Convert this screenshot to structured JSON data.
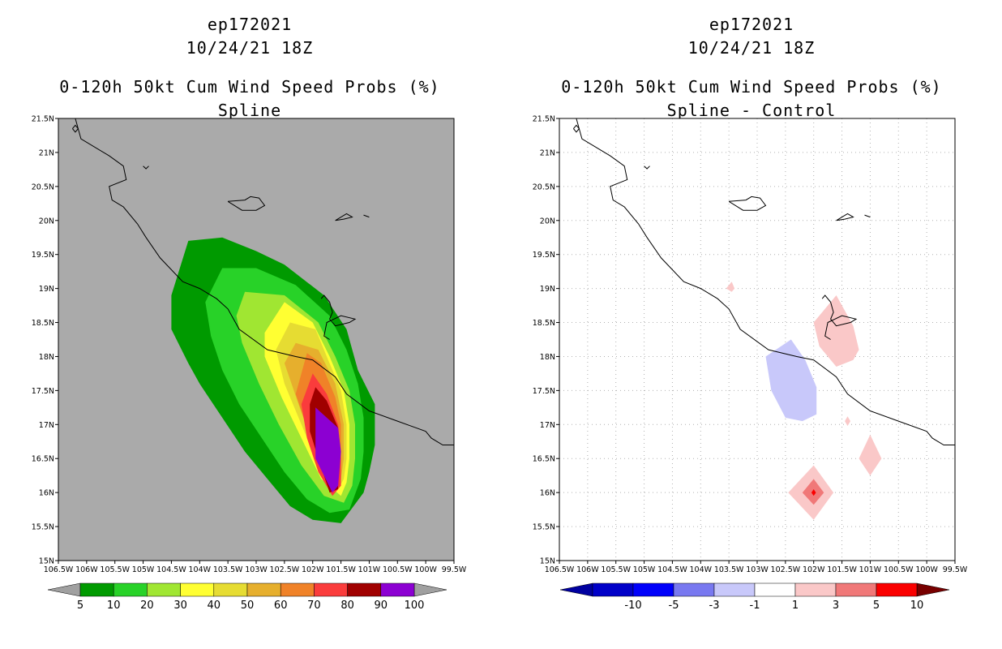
{
  "left_panel": {
    "storm_id": "ep172021",
    "datetime": "10/24/21 18Z",
    "product": "0-120h 50kt Cum Wind Speed Probs (%)",
    "subtitle": "Spline",
    "background_color": "#aaaaaa",
    "colorbar": {
      "labels": [
        "5",
        "10",
        "20",
        "30",
        "40",
        "50",
        "60",
        "70",
        "80",
        "90",
        "100"
      ],
      "colors": [
        "#009a00",
        "#28d228",
        "#a0e632",
        "#ffff32",
        "#e6dc32",
        "#e6af2d",
        "#f08228",
        "#fa3c3c",
        "#a00000",
        "#8c00d2"
      ],
      "end_arrow_color": "#a0a0a0"
    }
  },
  "right_panel": {
    "storm_id": "ep172021",
    "datetime": "10/24/21 18Z",
    "product": "0-120h 50kt Cum Wind Speed Probs (%)",
    "subtitle": "Spline - Control",
    "background_color": "#ffffff",
    "colorbar": {
      "labels": [
        "-10",
        "-5",
        "-3",
        "-1",
        "1",
        "3",
        "5",
        "10"
      ],
      "colors": [
        "#0000c8",
        "#0000fa",
        "#7878f0",
        "#c8c8fa",
        "#ffffff",
        "#fac8c8",
        "#f07878",
        "#fa0000"
      ],
      "low_arrow_color": "#0000a0",
      "high_arrow_color": "#780000"
    }
  },
  "axes": {
    "x_ticks": [
      "106.5W",
      "106W",
      "105.5W",
      "105W",
      "104.5W",
      "104W",
      "103.5W",
      "103W",
      "102.5W",
      "102W",
      "101.5W",
      "101W",
      "100.5W",
      "100W",
      "99.5W"
    ],
    "y_ticks": [
      "15N",
      "15.5N",
      "16N",
      "16.5N",
      "17N",
      "17.5N",
      "18N",
      "18.5N",
      "19N",
      "19.5N",
      "20N",
      "20.5N",
      "21N",
      "21.5N"
    ],
    "lon_range": [
      -106.5,
      -99.5
    ],
    "lat_range": [
      15,
      21.5
    ]
  },
  "map_data": {
    "coastline": [
      [
        -106.2,
        21.5
      ],
      [
        -106.1,
        21.2
      ],
      [
        -105.6,
        20.95
      ],
      [
        -105.35,
        20.8
      ],
      [
        -105.3,
        20.6
      ],
      [
        -105.6,
        20.5
      ],
      [
        -105.55,
        20.3
      ],
      [
        -105.35,
        20.2
      ],
      [
        -105.1,
        19.95
      ],
      [
        -104.95,
        19.75
      ],
      [
        -104.7,
        19.45
      ],
      [
        -104.3,
        19.1
      ],
      [
        -104.0,
        19.0
      ],
      [
        -103.7,
        18.85
      ],
      [
        -103.5,
        18.7
      ],
      [
        -103.3,
        18.4
      ],
      [
        -102.8,
        18.1
      ],
      [
        -102.3,
        18.0
      ],
      [
        -102.0,
        17.95
      ],
      [
        -101.6,
        17.7
      ],
      [
        -101.4,
        17.45
      ],
      [
        -101.0,
        17.2
      ],
      [
        -100.5,
        17.05
      ],
      [
        -100.0,
        16.9
      ],
      [
        -99.9,
        16.8
      ],
      [
        -99.8,
        16.75
      ],
      [
        -99.7,
        16.7
      ],
      [
        -99.5,
        16.7
      ]
    ],
    "islands": [
      [
        [
          -106.25,
          21.35
        ],
        [
          -106.2,
          21.3
        ],
        [
          -106.15,
          21.35
        ],
        [
          -106.2,
          21.4
        ],
        [
          -106.25,
          21.35
        ]
      ],
      [
        [
          -105.0,
          20.8
        ],
        [
          -104.95,
          20.76
        ],
        [
          -104.9,
          20.8
        ]
      ],
      [
        [
          -103.5,
          20.28
        ],
        [
          -103.2,
          20.3
        ],
        [
          -103.1,
          20.35
        ],
        [
          -102.95,
          20.33
        ],
        [
          -102.85,
          20.22
        ],
        [
          -103.0,
          20.15
        ],
        [
          -103.25,
          20.15
        ],
        [
          -103.5,
          20.28
        ]
      ],
      [
        [
          -101.6,
          20.0
        ],
        [
          -101.4,
          20.1
        ],
        [
          -101.3,
          20.05
        ],
        [
          -101.45,
          20.02
        ],
        [
          -101.6,
          20.0
        ]
      ],
      [
        [
          -101.1,
          20.08
        ],
        [
          -101.0,
          20.05
        ]
      ]
    ],
    "lake": [
      [
        -101.85,
        18.85
      ],
      [
        -101.8,
        18.9
      ],
      [
        -101.7,
        18.8
      ],
      [
        -101.65,
        18.65
      ],
      [
        -101.7,
        18.55
      ],
      [
        -101.6,
        18.45
      ],
      [
        -101.35,
        18.5
      ],
      [
        -101.25,
        18.55
      ],
      [
        -101.5,
        18.6
      ],
      [
        -101.75,
        18.5
      ],
      [
        -101.8,
        18.3
      ],
      [
        -101.7,
        18.25
      ]
    ],
    "left_contours": [
      {
        "level": "5",
        "color": "#009a00",
        "points": [
          [
            -104.2,
            19.7
          ],
          [
            -103.6,
            19.75
          ],
          [
            -103.0,
            19.55
          ],
          [
            -102.5,
            19.35
          ],
          [
            -101.8,
            18.9
          ],
          [
            -101.4,
            18.4
          ],
          [
            -101.2,
            17.8
          ],
          [
            -100.9,
            17.3
          ],
          [
            -100.9,
            16.7
          ],
          [
            -101.0,
            16.3
          ],
          [
            -101.1,
            16.0
          ],
          [
            -101.5,
            15.55
          ],
          [
            -102.0,
            15.6
          ],
          [
            -102.4,
            15.8
          ],
          [
            -102.8,
            16.2
          ],
          [
            -103.2,
            16.6
          ],
          [
            -103.6,
            17.1
          ],
          [
            -104.0,
            17.6
          ],
          [
            -104.2,
            17.9
          ],
          [
            -104.5,
            18.4
          ],
          [
            -104.5,
            18.9
          ],
          [
            -104.2,
            19.7
          ]
        ]
      },
      {
        "level": "10",
        "color": "#28d228",
        "points": [
          [
            -103.6,
            19.3
          ],
          [
            -103.0,
            19.3
          ],
          [
            -102.3,
            19.05
          ],
          [
            -101.7,
            18.6
          ],
          [
            -101.4,
            18.1
          ],
          [
            -101.2,
            17.6
          ],
          [
            -101.1,
            17.1
          ],
          [
            -101.1,
            16.6
          ],
          [
            -101.15,
            16.2
          ],
          [
            -101.35,
            15.75
          ],
          [
            -101.7,
            15.7
          ],
          [
            -102.1,
            15.9
          ],
          [
            -102.5,
            16.3
          ],
          [
            -102.9,
            16.8
          ],
          [
            -103.3,
            17.3
          ],
          [
            -103.6,
            17.8
          ],
          [
            -103.8,
            18.3
          ],
          [
            -103.9,
            18.8
          ],
          [
            -103.6,
            19.3
          ]
        ]
      },
      {
        "level": "20",
        "color": "#a0e632",
        "points": [
          [
            -103.2,
            18.95
          ],
          [
            -102.5,
            18.9
          ],
          [
            -101.9,
            18.5
          ],
          [
            -101.6,
            18.0
          ],
          [
            -101.35,
            17.5
          ],
          [
            -101.25,
            17.0
          ],
          [
            -101.25,
            16.5
          ],
          [
            -101.3,
            16.1
          ],
          [
            -101.45,
            15.85
          ],
          [
            -101.8,
            15.95
          ],
          [
            -102.2,
            16.4
          ],
          [
            -102.6,
            17.0
          ],
          [
            -102.95,
            17.6
          ],
          [
            -103.25,
            18.2
          ],
          [
            -103.35,
            18.6
          ],
          [
            -103.2,
            18.95
          ]
        ]
      },
      {
        "level": "30",
        "color": "#ffff32",
        "points": [
          [
            -102.5,
            18.8
          ],
          [
            -102.0,
            18.5
          ],
          [
            -101.7,
            18.0
          ],
          [
            -101.45,
            17.5
          ],
          [
            -101.35,
            17.0
          ],
          [
            -101.35,
            16.5
          ],
          [
            -101.4,
            16.15
          ],
          [
            -101.5,
            15.95
          ],
          [
            -101.85,
            16.2
          ],
          [
            -102.2,
            16.8
          ],
          [
            -102.55,
            17.4
          ],
          [
            -102.85,
            18.0
          ],
          [
            -102.85,
            18.35
          ],
          [
            -102.5,
            18.8
          ]
        ]
      },
      {
        "level": "40",
        "color": "#e6dc32",
        "points": [
          [
            -102.4,
            18.5
          ],
          [
            -101.95,
            18.4
          ],
          [
            -101.75,
            18.0
          ],
          [
            -101.5,
            17.5
          ],
          [
            -101.4,
            17.0
          ],
          [
            -101.4,
            16.5
          ],
          [
            -101.45,
            16.2
          ],
          [
            -101.55,
            16.05
          ],
          [
            -101.9,
            16.4
          ],
          [
            -102.2,
            17.0
          ],
          [
            -102.5,
            17.6
          ],
          [
            -102.65,
            18.1
          ],
          [
            -102.4,
            18.5
          ]
        ]
      },
      {
        "level": "50",
        "color": "#e6af2d",
        "points": [
          [
            -102.3,
            18.2
          ],
          [
            -101.9,
            18.1
          ],
          [
            -101.6,
            17.6
          ],
          [
            -101.45,
            17.0
          ],
          [
            -101.45,
            16.5
          ],
          [
            -101.5,
            16.2
          ],
          [
            -101.6,
            16.05
          ],
          [
            -101.95,
            16.6
          ],
          [
            -102.25,
            17.3
          ],
          [
            -102.5,
            17.9
          ],
          [
            -102.3,
            18.2
          ]
        ]
      },
      {
        "level": "60",
        "color": "#f08228",
        "points": [
          [
            -102.1,
            18.05
          ],
          [
            -101.85,
            17.9
          ],
          [
            -101.6,
            17.4
          ],
          [
            -101.5,
            17.0
          ],
          [
            -101.5,
            16.5
          ],
          [
            -101.55,
            16.1
          ],
          [
            -101.65,
            16.0
          ],
          [
            -102.0,
            16.7
          ],
          [
            -102.3,
            17.45
          ],
          [
            -102.1,
            18.05
          ]
        ]
      },
      {
        "level": "70",
        "color": "#fa3c3c",
        "points": [
          [
            -102.0,
            17.75
          ],
          [
            -101.75,
            17.45
          ],
          [
            -101.55,
            17.0
          ],
          [
            -101.5,
            16.5
          ],
          [
            -101.5,
            16.1
          ],
          [
            -101.65,
            15.95
          ],
          [
            -101.9,
            16.3
          ],
          [
            -102.1,
            16.8
          ],
          [
            -102.2,
            17.3
          ],
          [
            -102.0,
            17.75
          ]
        ]
      },
      {
        "level": "80",
        "color": "#a00000",
        "points": [
          [
            -101.95,
            17.55
          ],
          [
            -101.75,
            17.35
          ],
          [
            -101.55,
            16.95
          ],
          [
            -101.55,
            16.5
          ],
          [
            -101.55,
            16.05
          ],
          [
            -101.7,
            16.0
          ],
          [
            -101.9,
            16.5
          ],
          [
            -102.05,
            16.9
          ],
          [
            -102.05,
            17.3
          ],
          [
            -101.95,
            17.55
          ]
        ]
      },
      {
        "level": "90",
        "color": "#8c00d2",
        "points": [
          [
            -101.95,
            17.25
          ],
          [
            -101.55,
            16.95
          ],
          [
            -101.5,
            16.6
          ],
          [
            -101.55,
            16.1
          ],
          [
            -101.65,
            16.0
          ],
          [
            -101.95,
            16.5
          ],
          [
            -101.95,
            17.25
          ]
        ]
      }
    ],
    "right_diffs": [
      {
        "level": "-3",
        "color": "#c8c8fa",
        "points": [
          [
            -102.4,
            18.25
          ],
          [
            -102.85,
            18.0
          ],
          [
            -102.75,
            17.5
          ],
          [
            -102.5,
            17.1
          ],
          [
            -102.2,
            17.05
          ],
          [
            -101.95,
            17.15
          ],
          [
            -101.95,
            17.55
          ],
          [
            -102.15,
            17.95
          ],
          [
            -102.4,
            18.25
          ]
        ]
      },
      {
        "level": "3a",
        "color": "#fac8c8",
        "points": [
          [
            -101.6,
            18.9
          ],
          [
            -102.0,
            18.5
          ],
          [
            -101.9,
            18.15
          ],
          [
            -101.6,
            17.85
          ],
          [
            -101.3,
            17.95
          ],
          [
            -101.2,
            18.1
          ],
          [
            -101.3,
            18.45
          ],
          [
            -101.6,
            18.9
          ]
        ]
      },
      {
        "level": "3b",
        "color": "#fac8c8",
        "points": [
          [
            -103.45,
            19.1
          ],
          [
            -103.55,
            19.0
          ],
          [
            -103.45,
            18.95
          ],
          [
            -103.4,
            19.0
          ],
          [
            -103.45,
            19.1
          ]
        ]
      },
      {
        "level": "3c",
        "color": "#fac8c8",
        "points": [
          [
            -101.4,
            17.12
          ],
          [
            -101.45,
            17.05
          ],
          [
            -101.4,
            16.98
          ],
          [
            -101.35,
            17.05
          ],
          [
            -101.4,
            17.12
          ]
        ]
      },
      {
        "level": "3d",
        "color": "#fac8c8",
        "points": [
          [
            -101.0,
            16.85
          ],
          [
            -101.2,
            16.5
          ],
          [
            -101.0,
            16.25
          ],
          [
            -100.8,
            16.5
          ],
          [
            -101.0,
            16.85
          ]
        ]
      },
      {
        "level": "3e",
        "color": "#fac8c8",
        "points": [
          [
            -102.0,
            16.4
          ],
          [
            -102.45,
            16.0
          ],
          [
            -102.0,
            15.6
          ],
          [
            -101.65,
            16.0
          ],
          [
            -102.0,
            16.4
          ]
        ]
      },
      {
        "level": "5",
        "color": "#f07878",
        "points": [
          [
            -102.0,
            16.2
          ],
          [
            -102.2,
            16.0
          ],
          [
            -102.0,
            15.82
          ],
          [
            -101.82,
            16.0
          ],
          [
            -102.0,
            16.2
          ]
        ]
      },
      {
        "level": "10",
        "color": "#fa0000",
        "points": [
          [
            -102.0,
            16.05
          ],
          [
            -102.04,
            16.0
          ],
          [
            -102.0,
            15.95
          ],
          [
            -101.96,
            16.0
          ],
          [
            -102.0,
            16.05
          ]
        ]
      }
    ]
  }
}
